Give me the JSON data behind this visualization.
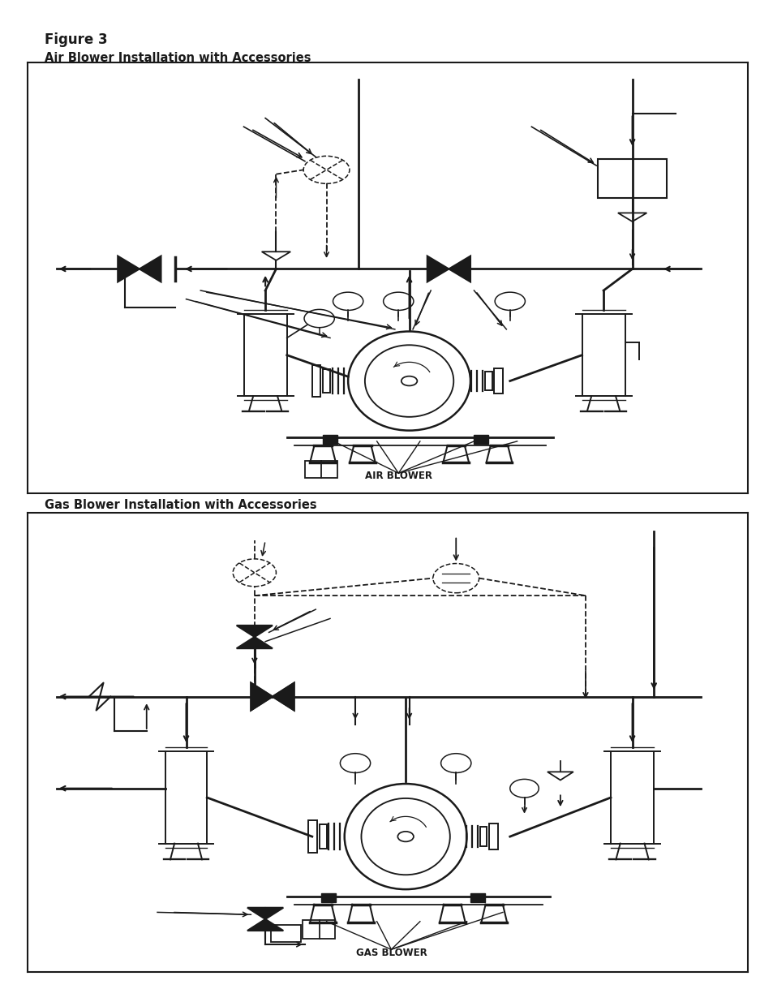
{
  "title": "Figure 3",
  "subtitle1": "Air Blower Installation with Accessories",
  "subtitle2": "Gas Blower Installation with Accessories",
  "label_air": "AIR BLOWER",
  "label_gas": "GAS BLOWER",
  "bg_color": "#ffffff",
  "lc": "#1a1a1a",
  "title_fontsize": 12,
  "subtitle_fontsize": 10.5,
  "label_fontsize": 8.5
}
